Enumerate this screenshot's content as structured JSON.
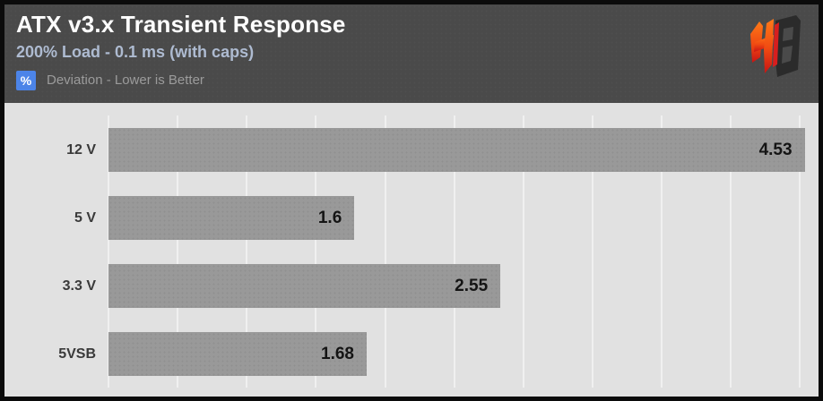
{
  "header": {
    "title": "ATX v3.x Transient Response",
    "subtitle": "200% Load - 0.1 ms (with caps)",
    "legend_badge": "%",
    "legend_text": "Deviation - Lower is Better"
  },
  "logo": {
    "letters": "HB"
  },
  "colors": {
    "border": "#0b0b0b",
    "header_bg": "#4a4a4a",
    "title": "#ffffff",
    "subtitle": "#aebbd1",
    "badge_bg": "#4c84e8",
    "legend_text": "#9b9b9b",
    "chart_bg": "#e1e1e1",
    "gridline": "#f0f0f0",
    "bar": "#999999",
    "bar_value": "#141414",
    "category_label": "#3a3a3a",
    "logo_orange": "#ff6a13",
    "logo_red": "#d81e1e",
    "logo_dark": "#2b2b2b"
  },
  "chart_data": {
    "type": "bar",
    "orientation": "horizontal",
    "title": "ATX v3.x Transient Response",
    "subtitle": "200% Load - 0.1 ms (with caps)",
    "value_unit": "%",
    "note": "Deviation - Lower is Better",
    "categories": [
      "12 V",
      "5 V",
      "3.3 V",
      "5VSB"
    ],
    "values": [
      4.53,
      1.6,
      2.55,
      1.68
    ],
    "xlim": [
      0,
      4.62
    ],
    "grid_interval": 0.45,
    "grid": true,
    "legend_position": "none",
    "value_labels": "inside-end"
  }
}
